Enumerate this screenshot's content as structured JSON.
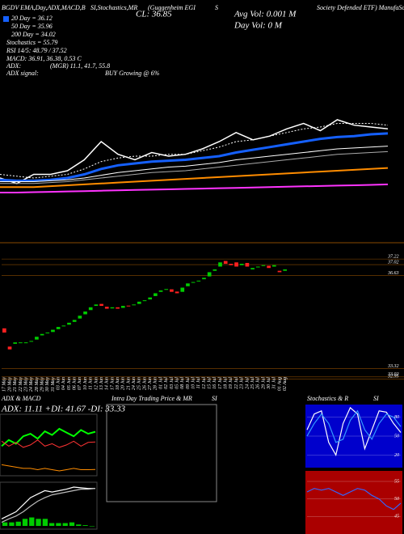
{
  "chart_data": [
    {
      "type": "line",
      "annotations": [
        "BGDV EMA,Day,ADX,MACD,B",
        "SI,Stochastics,MR",
        "(Guggenheim EGI",
        "S",
        "CL: 36.85",
        "Avg Vol: 0.001 M",
        "Day Vol: 0  M",
        "Society Defended ETF) ManufaSolutions",
        "20 Day = 36.12",
        "50 Day = 35.96",
        "200 Day = 34.02",
        "Stochastics = 55.79",
        "RSI 14/5: 48.79 / 37.52",
        "MACD: 36.91, 36.38, 0.53 C",
        "ADX:",
        "(MGR) 11.1, 41.7, 55.8",
        "ADX  signal:",
        "BUY Growing @ 6%"
      ],
      "series": [
        {
          "color": "#ffffff",
          "values": [
            34.3,
            34.0,
            34.5,
            34.5,
            34.7,
            35.3,
            36.3,
            35.6,
            35.3,
            35.7,
            35.5,
            35.6,
            35.9,
            36.3,
            36.8,
            36.4,
            36.6,
            37.0,
            37.3,
            36.9,
            37.5,
            37.2,
            37.1,
            37.0
          ]
        },
        {
          "color": "#ffffff",
          "values": [
            34.5,
            34.4,
            34.3,
            34.4,
            34.5,
            34.8,
            35.2,
            35.4,
            35.5,
            35.5,
            35.6,
            35.6,
            35.8,
            36.0,
            36.3,
            36.4,
            36.6,
            36.8,
            37.0,
            37.1,
            37.3,
            37.3,
            37.3,
            37.2
          ]
        },
        {
          "color": "#1560ff",
          "values": [
            34.2,
            34.15,
            34.15,
            34.2,
            34.3,
            34.5,
            34.8,
            35.0,
            35.1,
            35.2,
            35.25,
            35.3,
            35.4,
            35.5,
            35.7,
            35.85,
            36.0,
            36.15,
            36.3,
            36.45,
            36.55,
            36.6,
            36.7,
            36.75
          ]
        },
        {
          "color": "#ffffff",
          "values": [
            34.1,
            34.1,
            34.1,
            34.15,
            34.2,
            34.3,
            34.45,
            34.6,
            34.7,
            34.8,
            34.9,
            34.95,
            35.05,
            35.15,
            35.3,
            35.4,
            35.5,
            35.6,
            35.7,
            35.8,
            35.9,
            35.95,
            36.0,
            36.05
          ]
        },
        {
          "color": "#aaaaaa",
          "values": [
            34.0,
            34.0,
            34.0,
            34.05,
            34.1,
            34.2,
            34.3,
            34.4,
            34.5,
            34.6,
            34.65,
            34.7,
            34.8,
            34.9,
            35.0,
            35.1,
            35.2,
            35.3,
            35.4,
            35.5,
            35.6,
            35.65,
            35.7,
            35.75
          ]
        },
        {
          "color": "#ff8c00",
          "values": [
            33.8,
            33.8,
            33.8,
            33.85,
            33.9,
            33.95,
            34.0,
            34.05,
            34.1,
            34.15,
            34.2,
            34.25,
            34.3,
            34.35,
            34.4,
            34.45,
            34.5,
            34.55,
            34.6,
            34.65,
            34.7,
            34.75,
            34.8,
            34.85
          ]
        },
        {
          "color": "#ff33ff",
          "values": [
            33.5,
            33.5,
            33.52,
            33.54,
            33.56,
            33.58,
            33.6,
            33.62,
            33.64,
            33.66,
            33.68,
            33.7,
            33.72,
            33.74,
            33.76,
            33.78,
            33.8,
            33.82,
            33.84,
            33.86,
            33.88,
            33.9,
            33.92,
            33.95
          ]
        }
      ]
    },
    {
      "type": "candlestick",
      "categories": [
        "17 May",
        "20 May",
        "21 May",
        "22 May",
        "23 May",
        "24 May",
        "28 May",
        "29 May",
        "30 May",
        "31 May",
        "03 Jun",
        "04 Jun",
        "05 Jun",
        "06 Jun",
        "07 Jun",
        "10 Jun",
        "11 Jun",
        "12 Jun",
        "13 Jun",
        "14 Jun",
        "17 Jun",
        "18 Jun",
        "20 Jun",
        "21 Jun",
        "24 Jun",
        "25 Jun",
        "26 Jun",
        "27 Jun",
        "28 Jun",
        "01 Jul",
        "02 Jul",
        "03 Jul",
        "05 Jul",
        "08 Jul",
        "09 Jul",
        "10 Jul",
        "11 Jul",
        "12 Jul",
        "15 Jul",
        "16 Jul",
        "17 Jul",
        "18 Jul",
        "19 Jul",
        "22 Jul",
        "23 Jul",
        "24 Jul",
        "25 Jul",
        "26 Jul",
        "29 Jul",
        "30 Jul",
        "31 Jul",
        "01 Aug",
        "02 Aug"
      ],
      "open": [
        34.75,
        34.1,
        34.2,
        34.25,
        34.25,
        34.28,
        34.35,
        34.5,
        34.58,
        34.62,
        34.72,
        34.82,
        34.88,
        34.98,
        35.1,
        35.25,
        35.4,
        35.55,
        35.62,
        35.52,
        35.46,
        35.5,
        35.48,
        35.56,
        35.58,
        35.62,
        35.72,
        35.78,
        35.9,
        36.05,
        36.12,
        36.14,
        36.06,
        36.05,
        36.25,
        36.38,
        36.42,
        36.5,
        36.6,
        36.8,
        36.95,
        37.15,
        37.05,
        37.1,
        37.0,
        37.08,
        36.85,
        36.92,
        36.97,
        36.98,
        36.95,
        36.8,
        36.8
      ],
      "close": [
        34.6,
        34.0,
        34.25,
        34.25,
        34.25,
        34.3,
        34.45,
        34.55,
        34.6,
        34.7,
        34.8,
        34.85,
        34.95,
        35.05,
        35.2,
        35.35,
        35.5,
        35.6,
        35.55,
        35.45,
        35.5,
        35.45,
        35.55,
        35.55,
        35.6,
        35.7,
        35.75,
        35.85,
        36.0,
        36.1,
        36.15,
        36.05,
        36.0,
        36.2,
        36.35,
        36.4,
        36.45,
        36.55,
        36.75,
        36.85,
        37.1,
        37.05,
        37.0,
        36.95,
        37.05,
        36.95,
        36.9,
        36.95,
        37.0,
        36.9,
        37.0,
        36.75,
        36.85
      ],
      "up_color": "#00cc00",
      "down_color": "#ff2020",
      "ylim": [
        32.9,
        37.8
      ],
      "yticks": [
        37.22,
        37.02,
        36.63,
        33.32,
        33.02,
        32.95
      ]
    },
    {
      "type": "line",
      "title": "ADX  & MACD",
      "subtitle": "ADX: 11.11 +DI: 41.67 -DI: 33.33",
      "series": [
        {
          "color": "#00ff00",
          "values": [
            30,
            35,
            32,
            38,
            40,
            36,
            42,
            39,
            44,
            41,
            38,
            43,
            40,
            41.67
          ]
        },
        {
          "color": "#ff3333",
          "values": [
            34,
            30,
            33,
            29,
            31,
            35,
            30,
            32,
            29,
            31,
            34,
            30,
            33,
            33.33
          ]
        },
        {
          "color": "#ff8c00",
          "values": [
            15,
            14,
            13,
            12,
            12,
            11,
            12,
            11,
            10,
            11,
            12,
            11,
            11,
            11.11
          ]
        }
      ]
    },
    {
      "type": "line",
      "series": [
        {
          "color": "#ffffff",
          "values": [
            0.1,
            0.15,
            0.2,
            0.3,
            0.4,
            0.45,
            0.5,
            0.48,
            0.5,
            0.52,
            0.55,
            0.54,
            0.53,
            0.53
          ]
        },
        {
          "color": "#bbbbbb",
          "values": [
            0.05,
            0.1,
            0.14,
            0.2,
            0.28,
            0.35,
            0.4,
            0.44,
            0.46,
            0.48,
            0.5,
            0.52,
            0.52,
            0.53
          ]
        }
      ],
      "histogram": [
        0.05,
        0.05,
        0.06,
        0.1,
        0.12,
        0.1,
        0.1,
        0.04,
        0.04,
        0.04,
        0.05,
        0.02,
        0.01,
        0
      ],
      "histogram_color": "#00cc00"
    },
    {
      "type": "line",
      "title": "Intra Day Trading Price  & MR",
      "subtitle": "SI",
      "series": []
    },
    {
      "type": "line",
      "title": "Stochastics & R",
      "subtitle": "SI",
      "ylim": [
        0,
        100
      ],
      "yticks": [
        80,
        50,
        20
      ],
      "series": [
        {
          "color": "#ffffff",
          "values": [
            60,
            85,
            90,
            40,
            20,
            70,
            95,
            85,
            30,
            60,
            90,
            88,
            70,
            55.79
          ]
        },
        {
          "color": "#3399ff",
          "values": [
            50,
            70,
            85,
            70,
            40,
            45,
            75,
            90,
            60,
            45,
            70,
            85,
            80,
            65
          ]
        }
      ]
    },
    {
      "type": "line",
      "ylim": [
        40,
        58
      ],
      "yticks": [
        55,
        50,
        45
      ],
      "series": [
        {
          "color": "#3366ff",
          "values": [
            52,
            53,
            52.5,
            53,
            52,
            51,
            52,
            53,
            52.5,
            51,
            50,
            48,
            47,
            48.79
          ]
        }
      ]
    }
  ]
}
